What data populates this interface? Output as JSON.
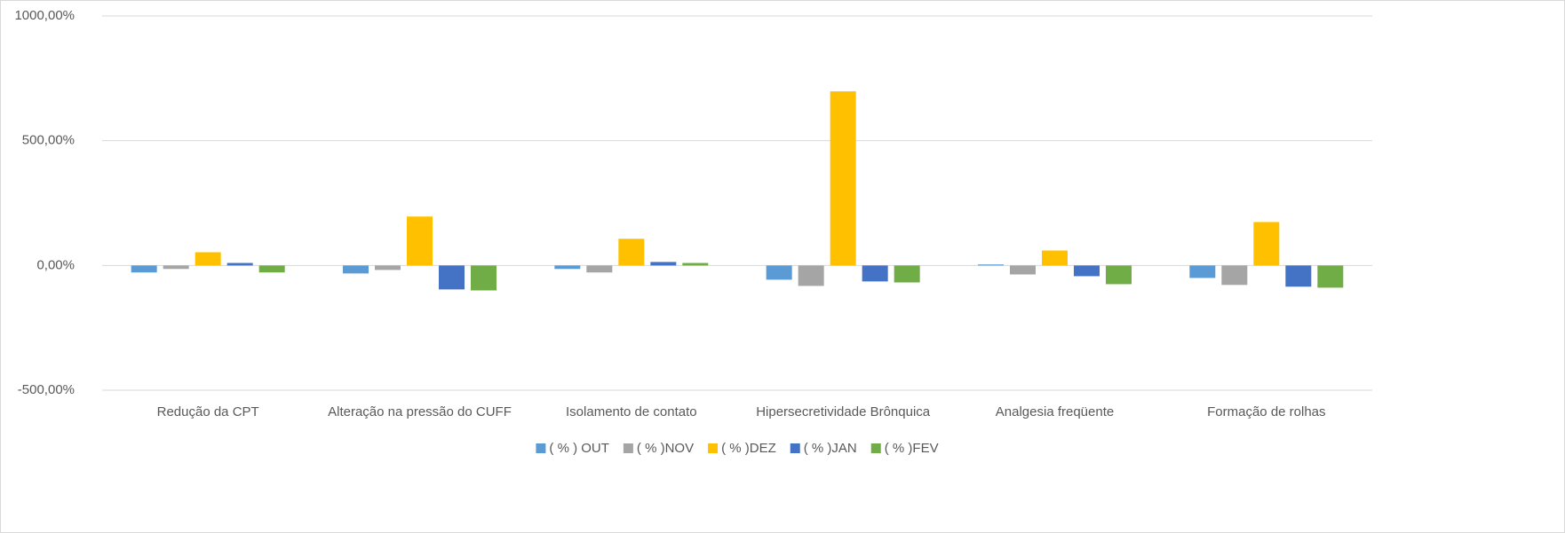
{
  "chart_data": {
    "type": "bar",
    "categories": [
      "Redução da CPT",
      "Alteração na pressão do CUFF",
      "Isolamento de contato",
      "Hipersecretividade Brônquica",
      "Analgesia freqüente",
      "Formação de rolhas"
    ],
    "series": [
      {
        "name": "( % ) OUT",
        "color": "#5b9bd5",
        "values": [
          -28,
          -32,
          -14,
          -57,
          4,
          -50
        ]
      },
      {
        "name": "( % )NOV",
        "color": "#a5a5a5",
        "values": [
          -14,
          -18,
          -28,
          -82,
          -36,
          -78
        ]
      },
      {
        "name": "( % )DEZ",
        "color": "#ffc000",
        "values": [
          53,
          196,
          107,
          698,
          60,
          174
        ]
      },
      {
        "name": "( % )JAN",
        "color": "#4472c4",
        "values": [
          10,
          -96,
          14,
          -64,
          -43,
          -85
        ]
      },
      {
        "name": "( % )FEV",
        "color": "#70ad47",
        "values": [
          -28,
          -100,
          10,
          -68,
          -75,
          -89
        ]
      }
    ],
    "ylim": [
      -500,
      1000
    ],
    "yticks": [
      {
        "value": -500,
        "label": "-500,00%"
      },
      {
        "value": 0,
        "label": "0,00%"
      },
      {
        "value": 500,
        "label": "500,00%"
      },
      {
        "value": 1000,
        "label": "1000,00%"
      }
    ],
    "grid": true,
    "legend": "bottom"
  }
}
